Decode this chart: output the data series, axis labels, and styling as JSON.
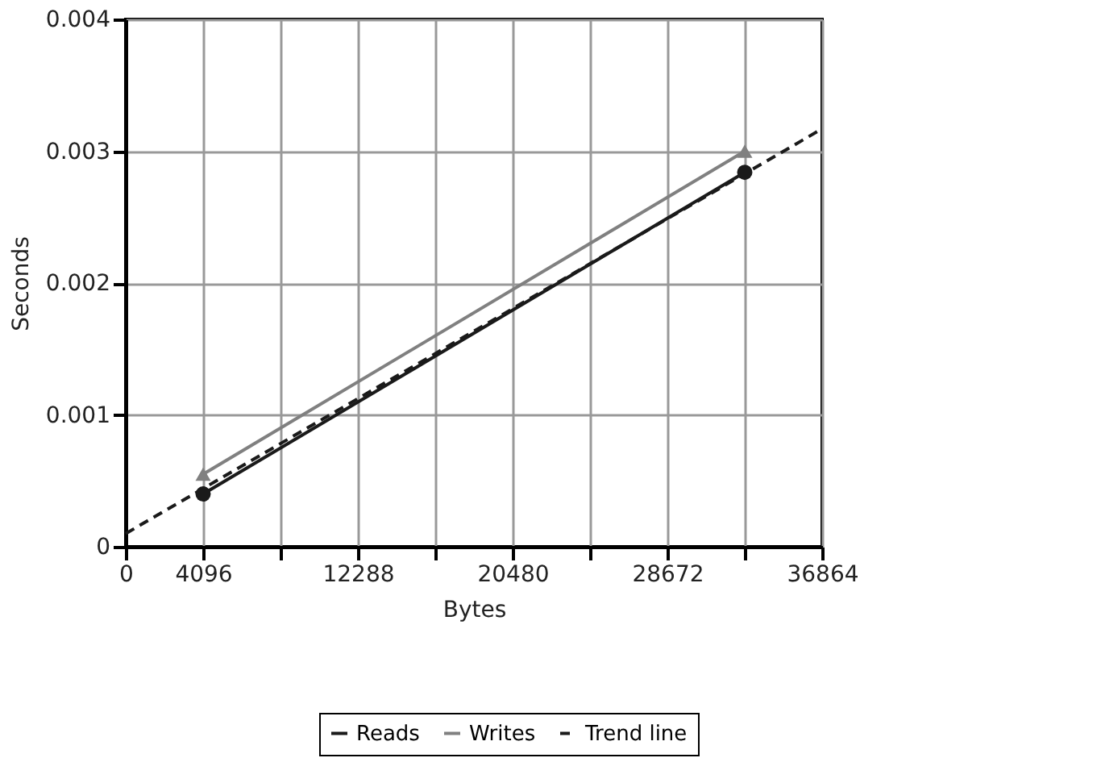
{
  "chart_data": {
    "type": "line",
    "xlabel": "Bytes",
    "ylabel": "Seconds",
    "series": [
      {
        "name": "Reads",
        "color": "#1a1a1a",
        "x": [
          4096,
          32768
        ],
        "values": [
          0.0004,
          0.00284
        ],
        "marker": "circle",
        "line_style": "solid"
      },
      {
        "name": "Writes",
        "color": "#808080",
        "x": [
          4096,
          32768
        ],
        "values": [
          0.00055,
          0.003
        ],
        "marker": "triangle",
        "line_style": "solid"
      },
      {
        "name": "Trend line",
        "color": "#1a1a1a",
        "x": [
          0,
          36864
        ],
        "values": [
          0.0001,
          0.00317
        ],
        "marker": "none",
        "line_style": "dashed"
      }
    ],
    "xlim": [
      0,
      36864
    ],
    "ylim": [
      0,
      0.004
    ],
    "xticks": [
      0,
      4096,
      {
        "value": 8192,
        "label": null
      },
      12288,
      {
        "value": 16384,
        "label": null
      },
      20480,
      {
        "value": 24576,
        "label": null
      },
      28672,
      {
        "value": 32768,
        "label": null
      },
      36864
    ],
    "yticks": [
      0,
      0.001,
      0.002,
      0.003,
      0.004
    ],
    "grid": true,
    "legend": "bottom"
  }
}
